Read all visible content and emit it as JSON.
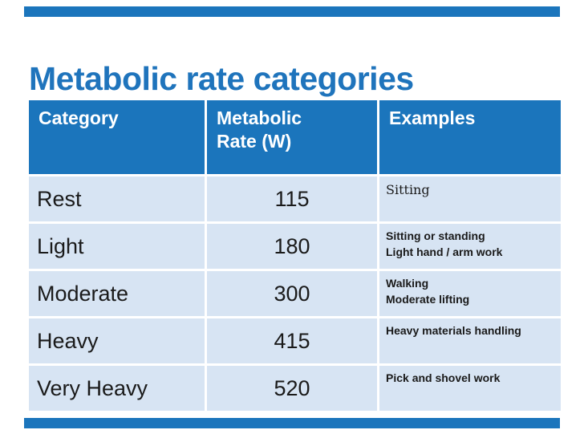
{
  "slide": {
    "title": "Metabolic rate categories"
  },
  "colors": {
    "accent": "#1B75BC",
    "header-bg": "#1B75BC",
    "header-text": "#FFFFFF",
    "row-bg": "#D7E4F3",
    "title-color": "#1F74BC",
    "body-text": "#1A1A1A"
  },
  "table": {
    "headers": {
      "category": "Category",
      "rate": "Metabolic Rate (W)",
      "examples": "Examples"
    },
    "rows": [
      {
        "category": "Rest",
        "rate": "115",
        "examples": [
          "Sitting"
        ]
      },
      {
        "category": "Light",
        "rate": "180",
        "examples": [
          "Sitting or standing",
          "Light hand / arm work"
        ]
      },
      {
        "category": "Moderate",
        "rate": "300",
        "examples": [
          "Walking",
          "Moderate lifting"
        ]
      },
      {
        "category": "Heavy",
        "rate": "415",
        "examples": [
          "Heavy materials handling"
        ]
      },
      {
        "category": "Very Heavy",
        "rate": "520",
        "examples": [
          "Pick and shovel work"
        ]
      }
    ]
  }
}
